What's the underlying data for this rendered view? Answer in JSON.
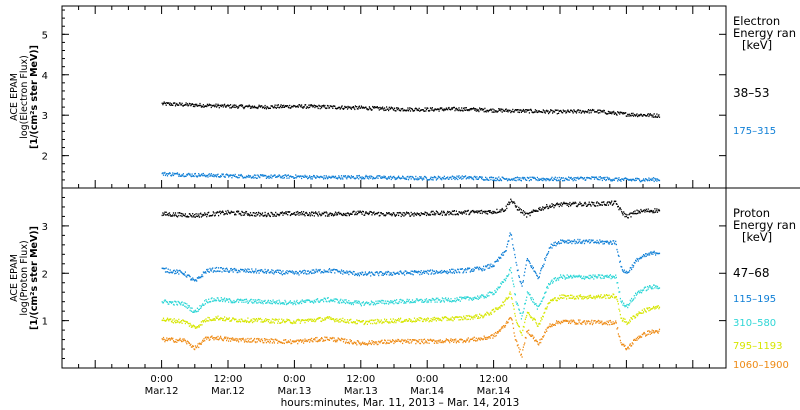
{
  "chart_data": [
    {
      "type": "scatter",
      "panel": "electron",
      "ylabel": [
        "ACE EPAM",
        "log(Electron Flux)",
        "[1/(cm²s ster MeV)]"
      ],
      "yrange": [
        1.2,
        5.7
      ],
      "yticks": [
        "2",
        "3",
        "4",
        "5"
      ],
      "legend_title": [
        "Electron",
        "Energy ran",
        "[keV]"
      ],
      "series": [
        {
          "name": "38–53",
          "color": "#000000",
          "x_hours": [
            0,
            6,
            12,
            18,
            24,
            30,
            36,
            42,
            48,
            54,
            60,
            66,
            72,
            78,
            84,
            90
          ],
          "values": [
            3.28,
            3.25,
            3.22,
            3.2,
            3.22,
            3.2,
            3.18,
            3.15,
            3.14,
            3.15,
            3.12,
            3.1,
            3.08,
            3.1,
            3.02,
            2.99
          ]
        },
        {
          "name": "175–315",
          "color": "#0f7fd6",
          "x_hours": [
            0,
            6,
            12,
            18,
            24,
            30,
            36,
            42,
            48,
            54,
            60,
            66,
            72,
            78,
            84,
            90
          ],
          "values": [
            1.55,
            1.52,
            1.5,
            1.48,
            1.48,
            1.46,
            1.47,
            1.45,
            1.44,
            1.46,
            1.43,
            1.42,
            1.42,
            1.44,
            1.4,
            1.41
          ]
        }
      ]
    },
    {
      "type": "scatter",
      "panel": "proton",
      "ylabel": [
        "ACE EPAM",
        "log(Proton Flux)",
        "[1/(cm²s ster MeV)]"
      ],
      "yrange": [
        0.0,
        3.8
      ],
      "yticks": [
        "1",
        "2",
        "3"
      ],
      "legend_title": [
        "Proton",
        "Energy ran",
        "[keV]"
      ],
      "series": [
        {
          "name": "47–68",
          "color": "#000000",
          "x_hours": [
            0,
            6,
            12,
            18,
            24,
            30,
            36,
            42,
            48,
            54,
            60,
            62,
            63,
            64,
            65,
            66,
            68,
            70,
            72,
            78,
            82,
            83,
            84,
            86,
            88,
            90
          ],
          "values": [
            3.25,
            3.22,
            3.28,
            3.24,
            3.26,
            3.25,
            3.27,
            3.24,
            3.26,
            3.28,
            3.3,
            3.35,
            3.55,
            3.4,
            3.3,
            3.22,
            3.35,
            3.42,
            3.45,
            3.46,
            3.48,
            3.3,
            3.2,
            3.3,
            3.32,
            3.33
          ]
        },
        {
          "name": "115–195",
          "color": "#0f7fd6",
          "x_hours": [
            0,
            4,
            6,
            8,
            10,
            12,
            18,
            24,
            30,
            36,
            42,
            48,
            54,
            58,
            60,
            62,
            63,
            64,
            65,
            66,
            68,
            70,
            72,
            78,
            82,
            83,
            84,
            86,
            88,
            90
          ],
          "values": [
            2.08,
            2.0,
            1.82,
            2.05,
            2.08,
            2.06,
            2.04,
            2.0,
            2.06,
            1.98,
            2.0,
            2.02,
            2.05,
            2.1,
            2.18,
            2.45,
            2.85,
            2.2,
            1.7,
            2.3,
            1.9,
            2.55,
            2.68,
            2.66,
            2.65,
            2.1,
            2.0,
            2.3,
            2.4,
            2.45
          ]
        },
        {
          "name": "310–580",
          "color": "#2ed6d6",
          "x_hours": [
            0,
            4,
            6,
            8,
            10,
            12,
            18,
            24,
            30,
            36,
            42,
            48,
            54,
            58,
            60,
            62,
            63,
            64,
            65,
            66,
            68,
            70,
            72,
            78,
            82,
            83,
            84,
            86,
            88,
            90
          ],
          "values": [
            1.4,
            1.35,
            1.18,
            1.42,
            1.45,
            1.42,
            1.4,
            1.38,
            1.44,
            1.36,
            1.4,
            1.42,
            1.45,
            1.5,
            1.6,
            1.85,
            2.1,
            1.4,
            1.05,
            1.6,
            1.25,
            1.8,
            1.92,
            1.92,
            1.93,
            1.4,
            1.3,
            1.6,
            1.7,
            1.72
          ]
        },
        {
          "name": "795–1193",
          "color": "#d6e600",
          "x_hours": [
            0,
            4,
            6,
            8,
            10,
            12,
            18,
            24,
            30,
            36,
            42,
            48,
            54,
            58,
            60,
            62,
            63,
            64,
            65,
            66,
            68,
            70,
            72,
            78,
            82,
            83,
            84,
            86,
            88,
            90
          ],
          "values": [
            1.02,
            0.98,
            0.85,
            1.02,
            1.06,
            1.02,
            1.0,
            0.98,
            1.04,
            0.96,
            1.0,
            1.02,
            1.05,
            1.1,
            1.2,
            1.4,
            1.6,
            1.0,
            0.7,
            1.2,
            0.9,
            1.4,
            1.5,
            1.5,
            1.52,
            1.05,
            0.95,
            1.15,
            1.25,
            1.28
          ]
        },
        {
          "name": "1060–1900",
          "color": "#ee8a14",
          "x_hours": [
            0,
            4,
            6,
            8,
            10,
            12,
            18,
            24,
            30,
            36,
            42,
            48,
            54,
            58,
            60,
            62,
            63,
            64,
            65,
            66,
            68,
            70,
            72,
            78,
            82,
            83,
            84,
            86,
            88,
            90
          ],
          "values": [
            0.6,
            0.58,
            0.42,
            0.62,
            0.64,
            0.6,
            0.58,
            0.55,
            0.62,
            0.52,
            0.56,
            0.56,
            0.58,
            0.62,
            0.68,
            0.9,
            1.1,
            0.55,
            0.25,
            0.8,
            0.5,
            0.9,
            0.98,
            0.96,
            0.96,
            0.5,
            0.4,
            0.65,
            0.75,
            0.78
          ]
        }
      ]
    }
  ],
  "x_axis": {
    "range_hours": [
      -18,
      102
    ],
    "ticks": [
      {
        "h": 0,
        "top": "0:00",
        "bottom": "Mar.12"
      },
      {
        "h": 12,
        "top": "12:00",
        "bottom": "Mar.12"
      },
      {
        "h": 24,
        "top": "0:00",
        "bottom": "Mar.13"
      },
      {
        "h": 36,
        "top": "12:00",
        "bottom": "Mar.13"
      },
      {
        "h": 48,
        "top": "0:00",
        "bottom": "Mar.14"
      },
      {
        "h": 60,
        "top": "12:00",
        "bottom": "Mar.14"
      }
    ],
    "title": "hours:minutes, Mar. 11, 2013 – Mar. 14, 2013"
  }
}
